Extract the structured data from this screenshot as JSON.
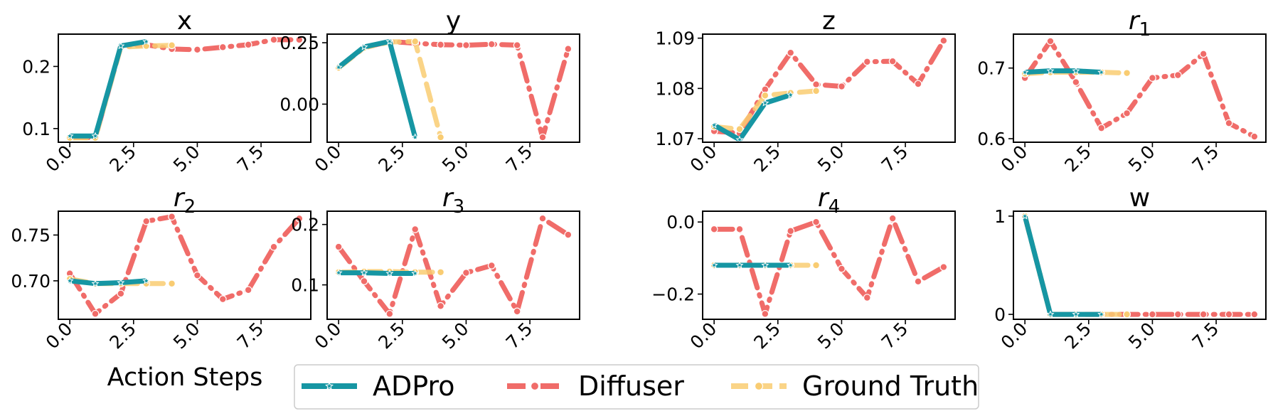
{
  "figure": {
    "xlabel": "Action Steps"
  },
  "legend": {
    "entries": [
      {
        "label": "ADPro",
        "color": "#1696a3",
        "style": "solid",
        "marker": "star"
      },
      {
        "label": "Diffuser",
        "color": "#f06c69",
        "style": "dashdot",
        "marker": "circle"
      },
      {
        "label": "Ground Truth",
        "color": "#f9cc72",
        "style": "dashed",
        "marker": "circle"
      }
    ]
  },
  "chart_data": [
    {
      "type": "line",
      "title": "x",
      "title_base": "x",
      "title_sub": "",
      "xlim": [
        -0.45,
        9.45
      ],
      "ylim": [
        0.078,
        0.252
      ],
      "xticks": [
        0,
        2.5,
        5,
        7.5
      ],
      "xtick_labels": [
        "0.0",
        "2.5",
        "5.0",
        "7.5"
      ],
      "yticks": [
        0.1,
        0.2
      ],
      "ytick_labels": [
        "0.1",
        "0.2"
      ],
      "series": [
        {
          "name": "Diffuser",
          "x": [
            0,
            1,
            2,
            3,
            4,
            5,
            6,
            7,
            8,
            9
          ],
          "y": [
            0.086,
            0.085,
            0.232,
            0.235,
            0.228,
            0.227,
            0.231,
            0.235,
            0.243,
            0.243
          ]
        },
        {
          "name": "Ground Truth",
          "x": [
            0,
            1,
            2,
            3,
            4
          ],
          "y": [
            0.085,
            0.085,
            0.231,
            0.233,
            0.234
          ]
        },
        {
          "name": "ADPro",
          "x": [
            0,
            1,
            2,
            3
          ],
          "y": [
            0.088,
            0.088,
            0.233,
            0.24
          ]
        }
      ]
    },
    {
      "type": "line",
      "title": "y",
      "title_base": "y",
      "title_sub": "",
      "xlim": [
        -0.45,
        9.45
      ],
      "ylim": [
        -0.155,
        0.285
      ],
      "xticks": [
        0,
        2.5,
        5,
        7.5
      ],
      "xtick_labels": [
        "0.0",
        "2.5",
        "5.0",
        "7.5"
      ],
      "yticks": [
        0.0,
        0.25
      ],
      "ytick_labels": [
        "0.00",
        "0.25"
      ],
      "series": [
        {
          "name": "Diffuser",
          "x": [
            0,
            1,
            2,
            3,
            4,
            5,
            6,
            7,
            8,
            9
          ],
          "y": [
            0.15,
            0.23,
            0.255,
            0.248,
            0.242,
            0.24,
            0.244,
            0.24,
            -0.135,
            0.225
          ]
        },
        {
          "name": "Ground Truth",
          "x": [
            0,
            1,
            2,
            3,
            4
          ],
          "y": [
            0.148,
            0.23,
            0.253,
            0.255,
            -0.135
          ]
        },
        {
          "name": "ADPro",
          "x": [
            0,
            1,
            2,
            3
          ],
          "y": [
            0.15,
            0.233,
            0.255,
            -0.135
          ]
        }
      ]
    },
    {
      "type": "line",
      "title": "z",
      "title_base": "z",
      "title_sub": "",
      "xlim": [
        -0.45,
        9.45
      ],
      "ylim": [
        1.0693,
        1.0908
      ],
      "xticks": [
        0,
        2.5,
        5,
        7.5
      ],
      "xtick_labels": [
        "0.0",
        "2.5",
        "5.0",
        "7.5"
      ],
      "yticks": [
        1.07,
        1.08,
        1.09
      ],
      "ytick_labels": [
        "1.07",
        "1.08",
        "1.09"
      ],
      "series": [
        {
          "name": "Diffuser",
          "x": [
            0,
            1,
            2,
            3,
            4,
            5,
            6,
            7,
            8,
            9
          ],
          "y": [
            1.0715,
            1.0711,
            1.0798,
            1.0871,
            1.0808,
            1.0804,
            1.0853,
            1.0854,
            1.0809,
            1.0895
          ]
        },
        {
          "name": "Ground Truth",
          "x": [
            0,
            1,
            2,
            3,
            4
          ],
          "y": [
            1.0724,
            1.0719,
            1.0786,
            1.0791,
            1.0795
          ]
        },
        {
          "name": "ADPro",
          "x": [
            0,
            1,
            2,
            3
          ],
          "y": [
            1.0727,
            1.0698,
            1.0771,
            1.0787
          ]
        }
      ]
    },
    {
      "type": "line",
      "title": "r1",
      "title_base": "r",
      "title_sub": "1",
      "xlim": [
        -0.45,
        9.45
      ],
      "ylim": [
        0.595,
        0.748
      ],
      "xticks": [
        0,
        2.5,
        5,
        7.5
      ],
      "xtick_labels": [
        "0.0",
        "2.5",
        "5.0",
        "7.5"
      ],
      "yticks": [
        0.6,
        0.7
      ],
      "ytick_labels": [
        "0.6",
        "0.7"
      ],
      "series": [
        {
          "name": "Diffuser",
          "x": [
            0,
            1,
            2,
            3,
            4,
            5,
            6,
            7,
            8,
            9
          ],
          "y": [
            0.686,
            0.738,
            0.68,
            0.615,
            0.636,
            0.686,
            0.69,
            0.72,
            0.622,
            0.603
          ]
        },
        {
          "name": "Ground Truth",
          "x": [
            0,
            1,
            2,
            3,
            4
          ],
          "y": [
            0.692,
            0.694,
            0.694,
            0.694,
            0.693
          ]
        },
        {
          "name": "ADPro",
          "x": [
            0,
            1,
            2,
            3
          ],
          "y": [
            0.694,
            0.696,
            0.696,
            0.694
          ]
        }
      ]
    },
    {
      "type": "line",
      "title": "r2",
      "title_base": "r",
      "title_sub": "2",
      "xlim": [
        -0.45,
        9.45
      ],
      "ylim": [
        0.658,
        0.776
      ],
      "xticks": [
        0,
        2.5,
        5,
        7.5
      ],
      "xtick_labels": [
        "0.0",
        "2.5",
        "5.0",
        "7.5"
      ],
      "yticks": [
        0.7,
        0.75
      ],
      "ytick_labels": [
        "0.70",
        "0.75"
      ],
      "series": [
        {
          "name": "Diffuser",
          "x": [
            0,
            1,
            2,
            3,
            4,
            5,
            6,
            7,
            8,
            9
          ],
          "y": [
            0.708,
            0.664,
            0.686,
            0.765,
            0.77,
            0.706,
            0.68,
            0.69,
            0.737,
            0.768
          ]
        },
        {
          "name": "Ground Truth",
          "x": [
            0,
            1,
            2,
            3,
            4
          ],
          "y": [
            0.702,
            0.697,
            0.697,
            0.697,
            0.697
          ]
        },
        {
          "name": "ADPro",
          "x": [
            0,
            1,
            2,
            3
          ],
          "y": [
            0.7,
            0.697,
            0.698,
            0.7
          ]
        }
      ]
    },
    {
      "type": "line",
      "title": "r3",
      "title_base": "r",
      "title_sub": "3",
      "xlim": [
        -0.45,
        9.45
      ],
      "ylim": [
        0.043,
        0.222
      ],
      "xticks": [
        0,
        2.5,
        5,
        7.5
      ],
      "xtick_labels": [
        "0.0",
        "2.5",
        "5.0",
        "7.5"
      ],
      "yticks": [
        0.1,
        0.2
      ],
      "ytick_labels": [
        "0.1",
        "0.2"
      ],
      "series": [
        {
          "name": "Diffuser",
          "x": [
            0,
            1,
            2,
            3,
            4,
            5,
            6,
            7,
            8,
            9
          ],
          "y": [
            0.163,
            0.106,
            0.052,
            0.192,
            0.065,
            0.12,
            0.132,
            0.056,
            0.21,
            0.183
          ]
        },
        {
          "name": "Ground Truth",
          "x": [
            0,
            1,
            2,
            3,
            4
          ],
          "y": [
            0.121,
            0.122,
            0.122,
            0.121,
            0.121
          ]
        },
        {
          "name": "ADPro",
          "x": [
            0,
            1,
            2,
            3
          ],
          "y": [
            0.12,
            0.12,
            0.119,
            0.119
          ]
        }
      ]
    },
    {
      "type": "line",
      "title": "r4",
      "title_base": "r",
      "title_sub": "4",
      "xlim": [
        -0.45,
        9.45
      ],
      "ylim": [
        -0.27,
        0.03
      ],
      "xticks": [
        0,
        2.5,
        5,
        7.5
      ],
      "xtick_labels": [
        "0.0",
        "2.5",
        "5.0",
        "7.5"
      ],
      "yticks": [
        0.0,
        -0.2
      ],
      "ytick_labels": [
        "0.0",
        "−0.2"
      ],
      "series": [
        {
          "name": "Diffuser",
          "x": [
            0,
            1,
            2,
            3,
            4,
            5,
            6,
            7,
            8,
            9
          ],
          "y": [
            -0.02,
            -0.02,
            -0.255,
            -0.025,
            0.0,
            -0.13,
            -0.21,
            0.01,
            -0.165,
            -0.125
          ]
        },
        {
          "name": "Ground Truth",
          "x": [
            0,
            1,
            2,
            3,
            4
          ],
          "y": [
            -0.12,
            -0.12,
            -0.12,
            -0.12,
            -0.12
          ]
        },
        {
          "name": "ADPro",
          "x": [
            0,
            1,
            2,
            3
          ],
          "y": [
            -0.12,
            -0.12,
            -0.12,
            -0.12
          ]
        }
      ]
    },
    {
      "type": "line",
      "title": "w",
      "title_base": "w",
      "title_sub": "",
      "xlim": [
        -0.45,
        9.45
      ],
      "ylim": [
        -0.05,
        1.05
      ],
      "xticks": [
        0,
        2.5,
        5,
        7.5
      ],
      "xtick_labels": [
        "0.0",
        "2.5",
        "5.0",
        "7.5"
      ],
      "yticks": [
        0,
        1
      ],
      "ytick_labels": [
        "0",
        "1"
      ],
      "series": [
        {
          "name": "Diffuser",
          "x": [
            0,
            1,
            2,
            3,
            4,
            5,
            6,
            7,
            8,
            9
          ],
          "y": [
            1,
            0,
            0,
            0,
            0,
            0,
            0,
            0,
            0,
            0
          ]
        },
        {
          "name": "Ground Truth",
          "x": [
            0,
            1,
            2,
            3,
            4
          ],
          "y": [
            1,
            0,
            0,
            0,
            0
          ]
        },
        {
          "name": "ADPro",
          "x": [
            0,
            1,
            2,
            3
          ],
          "y": [
            1,
            0,
            0,
            0
          ]
        }
      ]
    }
  ]
}
